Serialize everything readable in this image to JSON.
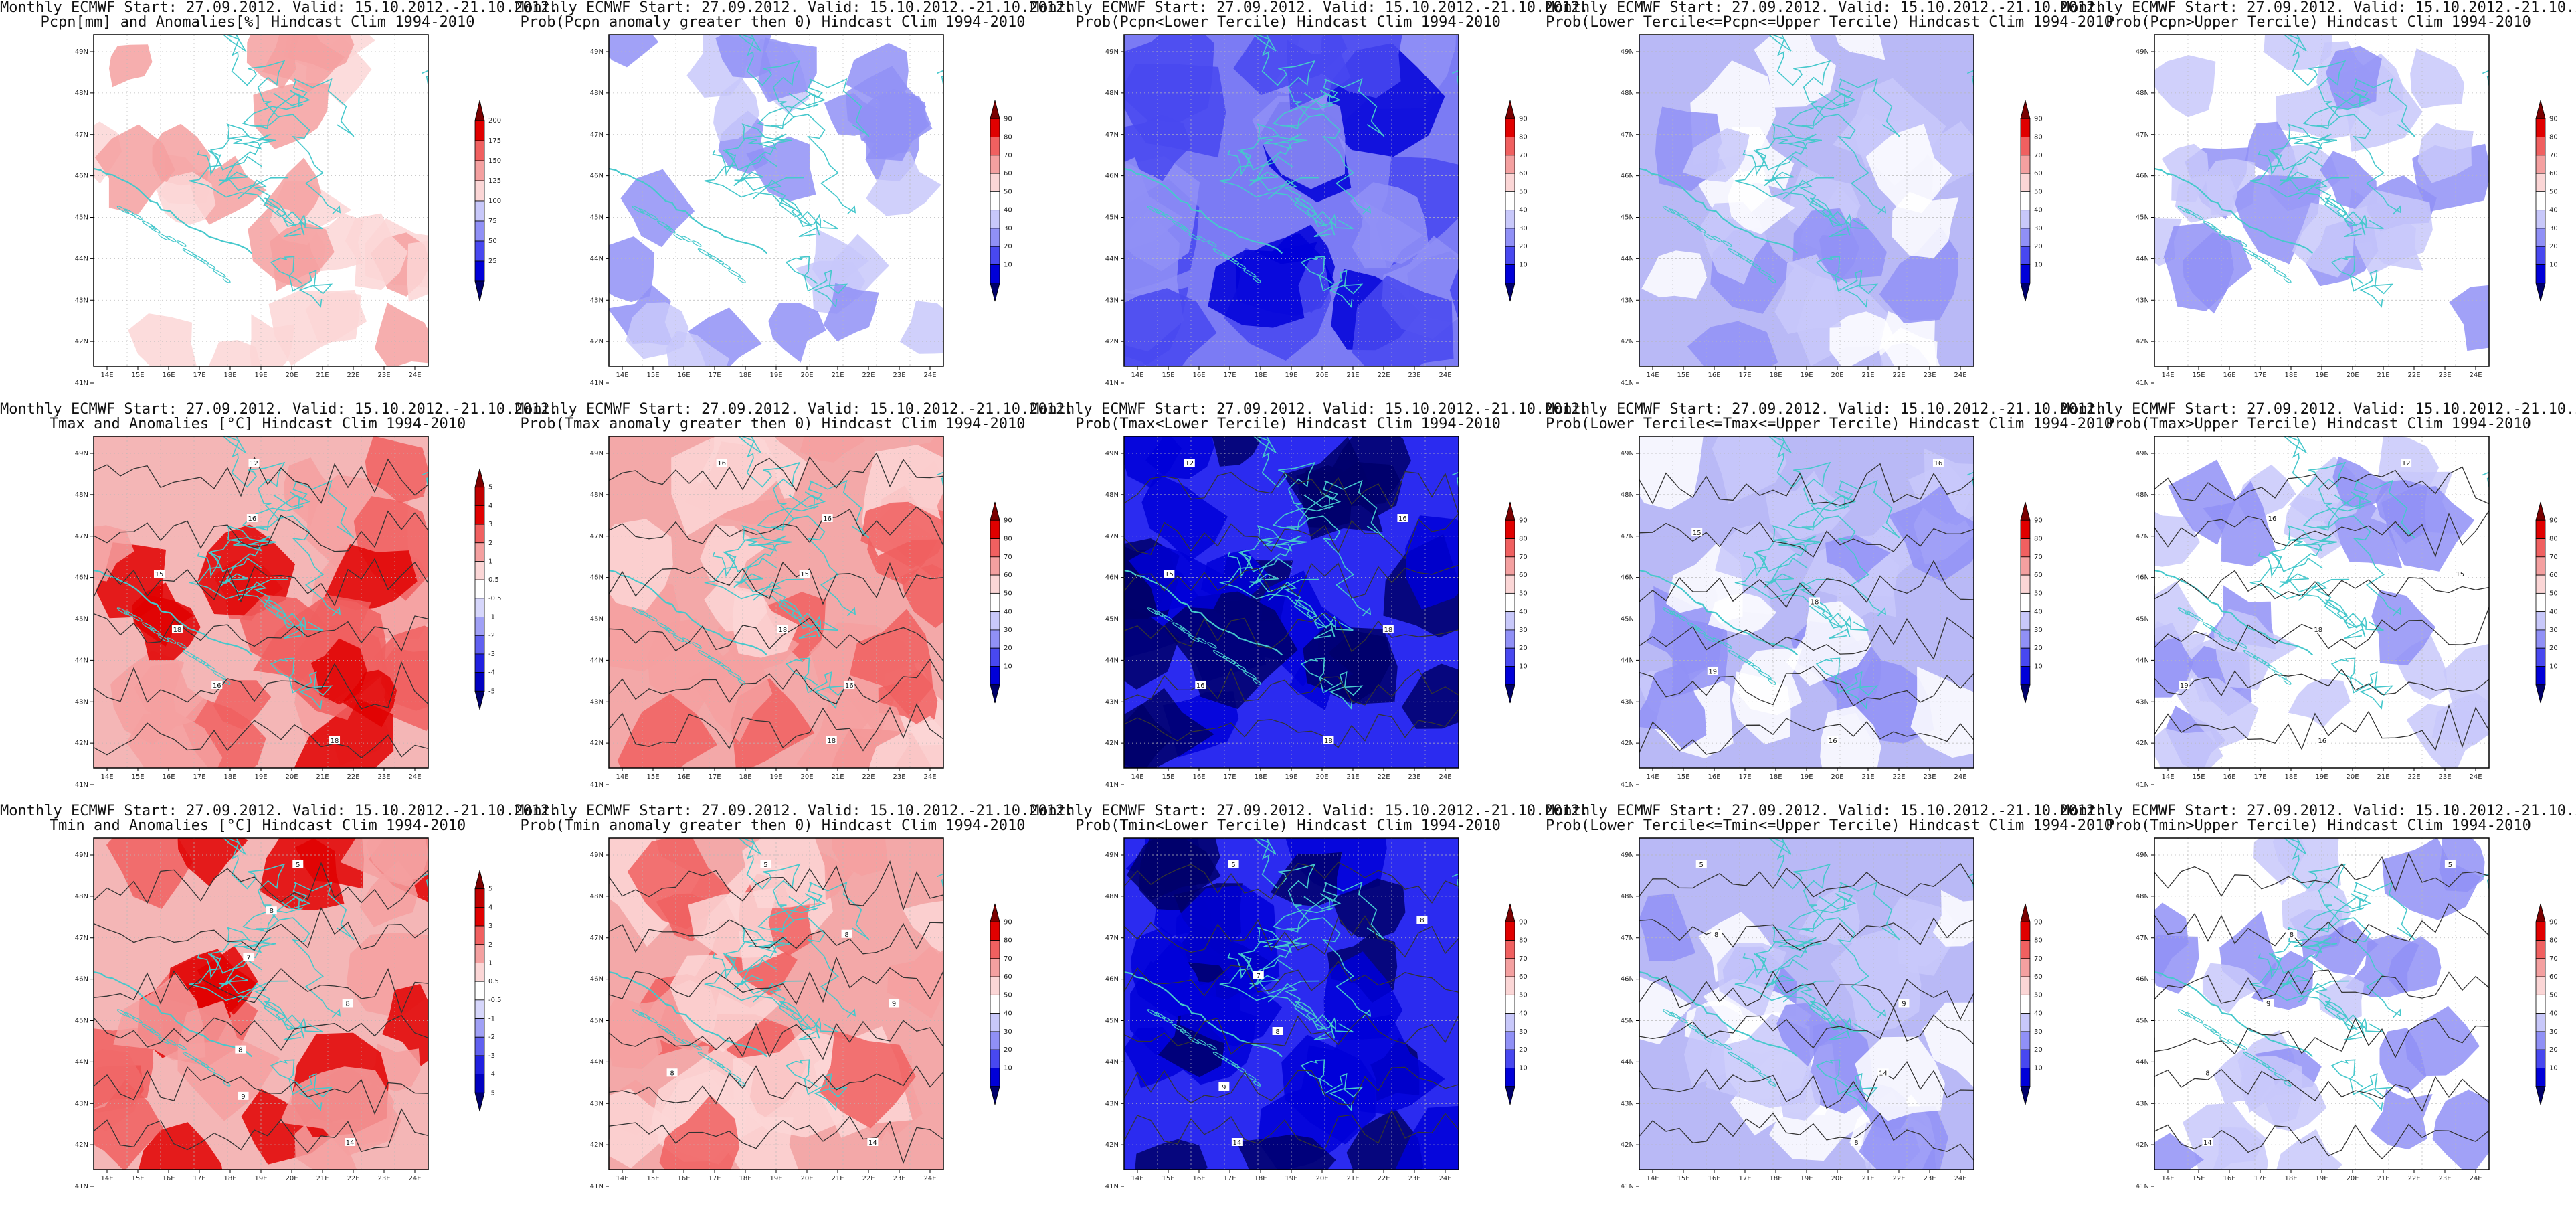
{
  "lon_ticks": [
    "14E",
    "15E",
    "16E",
    "17E",
    "18E",
    "19E",
    "20E",
    "21E",
    "22E",
    "23E",
    "24E"
  ],
  "lat_ticks": [
    "49N",
    "48N",
    "47N",
    "46N",
    "45N",
    "44N",
    "43N",
    "42N",
    "41N"
  ],
  "colors": {
    "border": "#46c8cc",
    "contour": "#333333",
    "frame": "#000000"
  },
  "header": "Monthly ECMWF Start: 27.09.2012. Valid: 15.10.2012.-21.10.2012.",
  "panels": [
    {
      "id": "pcpn-anom",
      "subtitle": "Pcpn[mm] and Anomalies[%] Hindcast Clim 1994-2010",
      "scale": "pct",
      "bg": "#ffffff",
      "intensity": 0.3,
      "contours": false,
      "clabels": []
    },
    {
      "id": "pcpn-prob-gt0",
      "subtitle": "Prob(Pcpn anomaly greater then 0) Hindcast Clim 1994-2010",
      "scale": "prob",
      "bg": "#ffffff",
      "intensity": 0.2,
      "contours": false,
      "clabels": []
    },
    {
      "id": "pcpn-lower",
      "subtitle": "Prob(Pcpn<Lower Tercile) Hindcast Clim 1994-2010",
      "scale": "prob",
      "bg": "#7b7bf4",
      "intensity": 0.7,
      "contours": false,
      "clabels": []
    },
    {
      "id": "pcpn-middle",
      "subtitle": "Prob(Lower Tercile<=Pcpn<=Upper Tercile) Hindcast Clim 1994-2010",
      "scale": "prob",
      "bg": "#b9b9f6",
      "intensity": 0.5,
      "contours": false,
      "clabels": []
    },
    {
      "id": "pcpn-upper",
      "subtitle": "Prob(Pcpn>Upper Tercile) Hindcast Clim 1994-2010",
      "scale": "prob",
      "bg": "#ffffff",
      "intensity": 0.35,
      "contours": false,
      "clabels": []
    },
    {
      "id": "tmax-anom",
      "subtitle": "Tmax and Anomalies [°C] Hindcast Clim 1994-2010",
      "scale": "anom",
      "bg": "#f4b6b6",
      "intensity": 0.6,
      "contours": true,
      "clabels": [
        "12",
        "16",
        "15",
        "18",
        "16",
        "18"
      ]
    },
    {
      "id": "tmax-prob-gt0",
      "subtitle": "Prob(Tmax anomaly greater then 0) Hindcast Clim 1994-2010",
      "scale": "prob",
      "bg": "#f3a8a8",
      "intensity": 0.6,
      "contours": true,
      "clabels": [
        "16",
        "16",
        "15",
        "18",
        "16",
        "18"
      ]
    },
    {
      "id": "tmax-lower",
      "subtitle": "Prob(Tmax<Lower Tercile) Hindcast Clim 1994-2010",
      "scale": "prob",
      "bg": "#2b2bf0",
      "intensity": 0.6,
      "contours": true,
      "clabels": [
        "12",
        "16",
        "15",
        "18",
        "16",
        "18"
      ]
    },
    {
      "id": "tmax-middle",
      "subtitle": "Prob(Lower Tercile<=Tmax<=Upper Tercile) Hindcast Clim 1994-2010",
      "scale": "prob",
      "bg": "#b9b9f6",
      "intensity": 0.5,
      "contours": true,
      "clabels": [
        "16",
        "15",
        "18",
        "19",
        "16"
      ]
    },
    {
      "id": "tmax-upper",
      "subtitle": "Prob(Tmax>Upper Tercile) Hindcast Clim 1994-2010",
      "scale": "prob",
      "bg": "#ffffff",
      "intensity": 0.3,
      "contours": true,
      "clabels": [
        "12",
        "16",
        "15",
        "18",
        "19",
        "16"
      ]
    },
    {
      "id": "tmin-anom",
      "subtitle": "Tmin and Anomalies [°C] Hindcast Clim 1994-2010",
      "scale": "anom",
      "bg": "#f4b6b6",
      "intensity": 0.6,
      "contours": true,
      "clabels": [
        "5",
        "8",
        "7",
        "8",
        "8",
        "9",
        "14"
      ]
    },
    {
      "id": "tmin-prob-gt0",
      "subtitle": "Prob(Tmin anomaly greater then 0) Hindcast Clim 1994-2010",
      "scale": "prob",
      "bg": "#f3a8a8",
      "intensity": 0.6,
      "contours": true,
      "clabels": [
        "5",
        "8",
        "9",
        "8",
        "14"
      ]
    },
    {
      "id": "tmin-lower",
      "subtitle": "Prob(Tmin<Lower Tercile) Hindcast Clim 1994-2010",
      "scale": "prob",
      "bg": "#2b2bf0",
      "intensity": 0.6,
      "contours": true,
      "clabels": [
        "5",
        "8",
        "7",
        "8",
        "9",
        "14"
      ]
    },
    {
      "id": "tmin-middle",
      "subtitle": "Prob(Lower Tercile<=Tmin<=Upper Tercile) Hindcast Clim 1994-2010",
      "scale": "prob",
      "bg": "#b9b9f6",
      "intensity": 0.5,
      "contours": true,
      "clabels": [
        "5",
        "8",
        "9",
        "14",
        "8"
      ]
    },
    {
      "id": "tmin-upper",
      "subtitle": "Prob(Tmin>Upper Tercile) Hindcast Clim 1994-2010",
      "scale": "prob",
      "bg": "#ffffff",
      "intensity": 0.3,
      "contours": true,
      "clabels": [
        "5",
        "8",
        "9",
        "8",
        "14"
      ]
    }
  ],
  "scales": {
    "pct": {
      "labels": [
        "200",
        "175",
        "150",
        "125",
        "100",
        "75",
        "50",
        "25"
      ],
      "colors": [
        "#7a0000",
        "#e00000",
        "#f06060",
        "#f4a0a0",
        "#fbd6d6",
        "#c8c8fa",
        "#9090f6",
        "#4848f0",
        "#0000d8",
        "#00006a"
      ]
    },
    "prob": {
      "labels": [
        "90",
        "80",
        "70",
        "60",
        "50",
        "40",
        "30",
        "20",
        "10"
      ],
      "colors": [
        "#7a0000",
        "#e00000",
        "#f06060",
        "#f4a0a0",
        "#fbd6d6",
        "#ffffff",
        "#c8c8fa",
        "#9090f6",
        "#4848f0",
        "#0000d8",
        "#00006a"
      ]
    },
    "anom": {
      "labels": [
        "5",
        "4",
        "3",
        "2",
        "1",
        "0.5",
        "-0.5",
        "-1",
        "-2",
        "-3",
        "-4",
        "-5"
      ],
      "colors": [
        "#7a0000",
        "#c00000",
        "#e00000",
        "#f06060",
        "#f4a0a0",
        "#fbd6d6",
        "#ffffff",
        "#d6d6fb",
        "#a0a0f6",
        "#6060f0",
        "#2020e0",
        "#0000c0",
        "#00006a"
      ]
    }
  }
}
